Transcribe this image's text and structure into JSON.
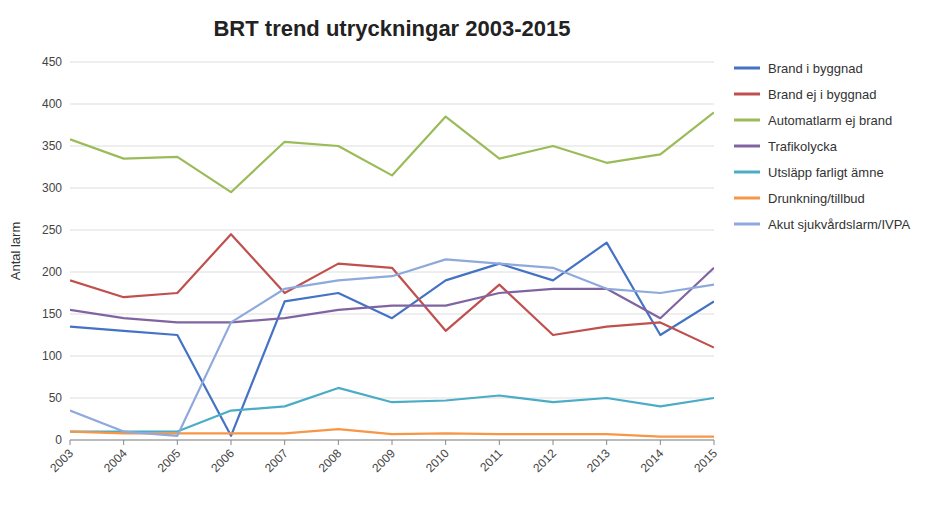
{
  "chart_data": {
    "type": "line",
    "title": "BRT trend utryckningar 2003-2015",
    "ylabel": "Antal larm",
    "x": [
      2003,
      2004,
      2005,
      2006,
      2007,
      2008,
      2009,
      2010,
      2011,
      2012,
      2013,
      2014,
      2015
    ],
    "xlim": [
      2003,
      2015
    ],
    "xticks": [
      2003,
      2004,
      2005,
      2006,
      2007,
      2008,
      2009,
      2010,
      2011,
      2012,
      2013,
      2014,
      2015
    ],
    "ylim": [
      0,
      450
    ],
    "yticks": [
      0,
      50,
      100,
      150,
      200,
      250,
      300,
      350,
      400,
      450
    ],
    "grid": true,
    "legend": "right",
    "series": [
      {
        "name": "Brand i byggnad",
        "color": "#4472C4",
        "values": [
          135,
          130,
          125,
          5,
          165,
          175,
          145,
          190,
          210,
          190,
          235,
          125,
          165
        ]
      },
      {
        "name": "Brand ej i byggnad",
        "color": "#C0504D",
        "values": [
          190,
          170,
          175,
          245,
          175,
          210,
          205,
          130,
          185,
          125,
          135,
          140,
          110
        ]
      },
      {
        "name": "Automatlarm ej brand",
        "color": "#9BBB59",
        "values": [
          358,
          335,
          337,
          295,
          355,
          350,
          315,
          385,
          335,
          350,
          330,
          340,
          390
        ]
      },
      {
        "name": "Trafikolycka",
        "color": "#8064A2",
        "values": [
          155,
          145,
          140,
          140,
          145,
          155,
          160,
          160,
          175,
          180,
          180,
          145,
          205
        ]
      },
      {
        "name": "Utsläpp farligt ämne",
        "color": "#4BACC6",
        "values": [
          10,
          10,
          10,
          35,
          40,
          62,
          45,
          47,
          53,
          45,
          50,
          40,
          50
        ]
      },
      {
        "name": "Drunkning/tillbud",
        "color": "#F79646",
        "values": [
          10,
          8,
          8,
          8,
          8,
          13,
          7,
          8,
          7,
          7,
          7,
          4,
          4
        ]
      },
      {
        "name": "Akut sjukvårdslarm/IVPA",
        "color": "#8EA9DB",
        "values": [
          35,
          10,
          5,
          140,
          180,
          190,
          195,
          215,
          210,
          205,
          180,
          175,
          185
        ]
      }
    ]
  }
}
